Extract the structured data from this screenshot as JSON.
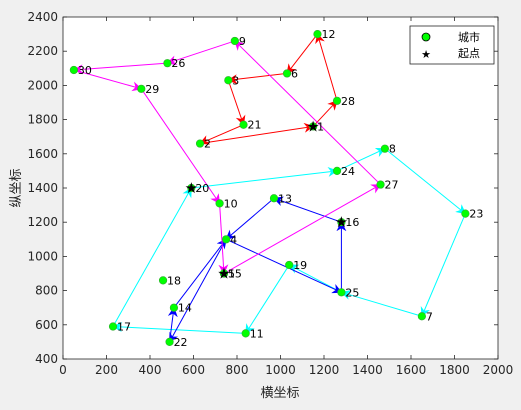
{
  "chart_data": {
    "type": "scatter",
    "xlabel": "横坐标",
    "ylabel": "纵坐标",
    "xlim": [
      0,
      2000
    ],
    "ylim": [
      400,
      2400
    ],
    "x_ticks": [
      0,
      200,
      400,
      600,
      800,
      1000,
      1200,
      1400,
      1600,
      1800,
      2000
    ],
    "y_ticks": [
      400,
      600,
      800,
      1000,
      1200,
      1400,
      1600,
      1800,
      2000,
      2200,
      2400
    ],
    "grid": false,
    "legend": {
      "placement": "top-right",
      "city_label": "城市",
      "start_label": "起点"
    },
    "city_marker_color": "#00ff00",
    "cities": [
      {
        "id": "1",
        "x": 1150,
        "y": 1760
      },
      {
        "id": "2",
        "x": 630,
        "y": 1660
      },
      {
        "id": "3",
        "x": 760,
        "y": 2030
      },
      {
        "id": "4",
        "x": 750,
        "y": 1100
      },
      {
        "id": "5",
        "x": 740,
        "y": 900
      },
      {
        "id": "6",
        "x": 1030,
        "y": 2070
      },
      {
        "id": "7",
        "x": 1650,
        "y": 650
      },
      {
        "id": "8",
        "x": 1480,
        "y": 1630
      },
      {
        "id": "9",
        "x": 790,
        "y": 2260
      },
      {
        "id": "10",
        "x": 720,
        "y": 1310
      },
      {
        "id": "11",
        "x": 840,
        "y": 550
      },
      {
        "id": "12",
        "x": 1170,
        "y": 2300
      },
      {
        "id": "13",
        "x": 970,
        "y": 1340
      },
      {
        "id": "14",
        "x": 510,
        "y": 700
      },
      {
        "id": "15",
        "x": 740,
        "y": 900
      },
      {
        "id": "16",
        "x": 1280,
        "y": 1200
      },
      {
        "id": "17",
        "x": 230,
        "y": 590
      },
      {
        "id": "18",
        "x": 460,
        "y": 860
      },
      {
        "id": "19",
        "x": 1040,
        "y": 950
      },
      {
        "id": "20",
        "x": 590,
        "y": 1400
      },
      {
        "id": "21",
        "x": 830,
        "y": 1770
      },
      {
        "id": "22",
        "x": 490,
        "y": 500
      },
      {
        "id": "23",
        "x": 1850,
        "y": 1250
      },
      {
        "id": "24",
        "x": 1260,
        "y": 1500
      },
      {
        "id": "25",
        "x": 1280,
        "y": 790
      },
      {
        "id": "26",
        "x": 480,
        "y": 2130
      },
      {
        "id": "27",
        "x": 1460,
        "y": 1420
      },
      {
        "id": "28",
        "x": 1260,
        "y": 1910
      },
      {
        "id": "29",
        "x": 360,
        "y": 1980
      },
      {
        "id": "30",
        "x": 50,
        "y": 2090
      }
    ],
    "start_points": [
      {
        "x": 1150,
        "y": 1760
      },
      {
        "x": 590,
        "y": 1400
      },
      {
        "x": 1280,
        "y": 1200
      },
      {
        "x": 740,
        "y": 900
      }
    ],
    "routes": [
      {
        "color": "#ff0000",
        "path": [
          "1",
          "28",
          "12",
          "6",
          "3",
          "21",
          "2",
          "1"
        ]
      },
      {
        "color": "#00ffff",
        "path": [
          "20",
          "24",
          "8",
          "23",
          "7",
          "25",
          "19",
          "11",
          "17",
          "20"
        ]
      },
      {
        "color": "#0000ff",
        "path": [
          "16",
          "13",
          "4",
          "22",
          "14",
          "4",
          "25",
          "16"
        ]
      },
      {
        "color": "#ff00ff",
        "path": [
          "15",
          "27",
          "9",
          "26",
          "30",
          "29",
          "10",
          "15"
        ]
      }
    ]
  }
}
